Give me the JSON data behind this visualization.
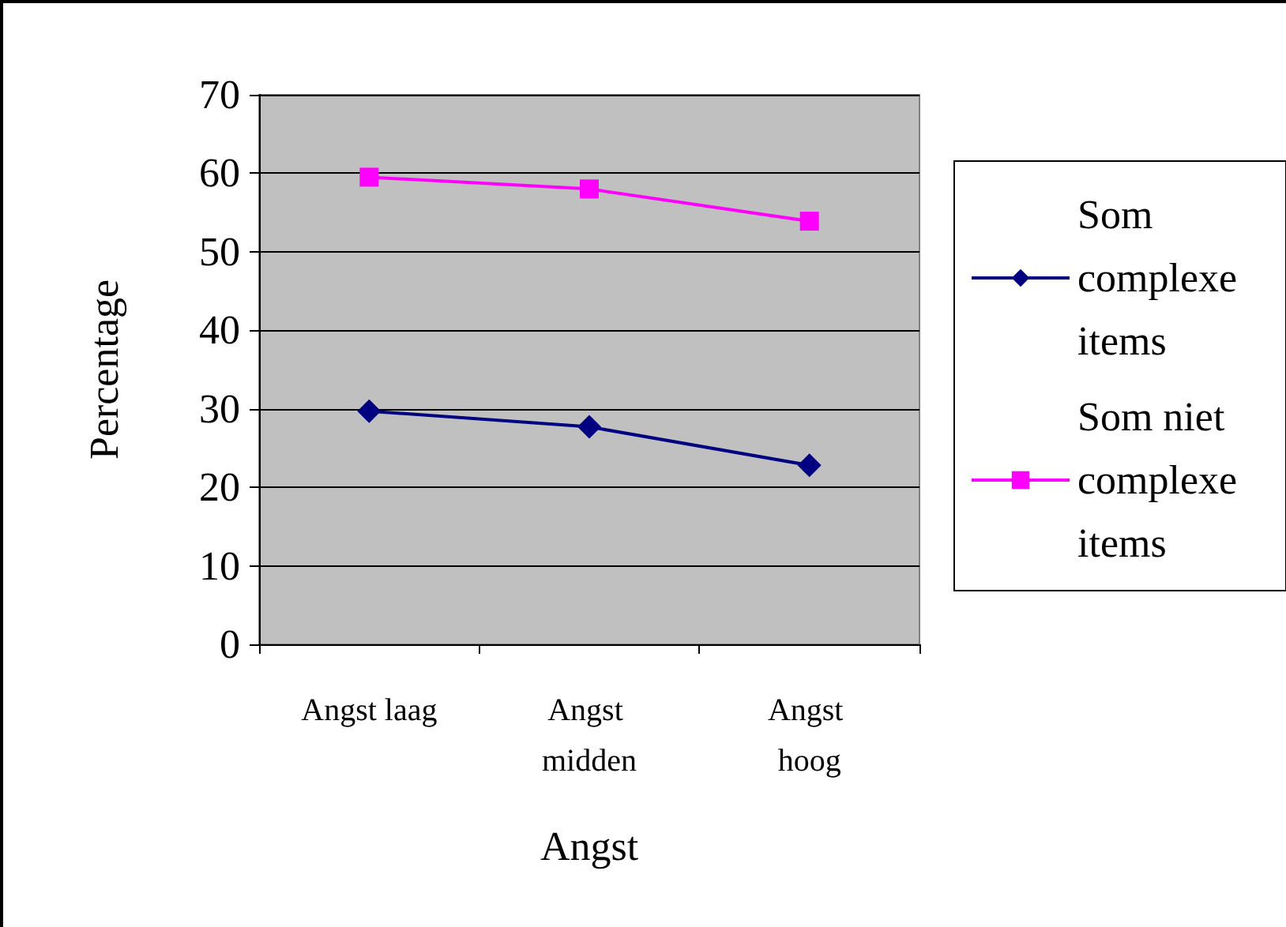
{
  "chart_data": {
    "type": "line",
    "xlabel": "Angst",
    "ylabel": "Percentage",
    "categories": [
      "Angst laag",
      "Angst midden",
      "Angst hoog"
    ],
    "series": [
      {
        "name": "Som complexe items",
        "color": "#000080",
        "marker": "diamond",
        "values": [
          29.7,
          27.7,
          22.8
        ]
      },
      {
        "name": "Som niet complexe items",
        "color": "#ff00ff",
        "marker": "square",
        "values": [
          59.5,
          58.0,
          53.9
        ]
      }
    ],
    "ylim": [
      0,
      70
    ],
    "yticks": [
      0,
      10,
      20,
      30,
      40,
      50,
      60,
      70
    ],
    "grid": "y",
    "legend": "right"
  }
}
